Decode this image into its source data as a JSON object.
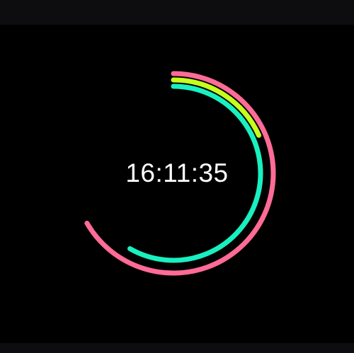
{
  "clock": {
    "time": "16:11:35",
    "hours": 16,
    "minutes": 11,
    "seconds": 35
  },
  "rings": {
    "hours_ring": {
      "fraction": 0.6667,
      "color": "#ff6b96"
    },
    "minutes_ring": {
      "fraction": 0.1833,
      "color": "#c6ff1e"
    },
    "seconds_ring": {
      "fraction": 0.5833,
      "color": "#19f0c0"
    }
  },
  "colors": {
    "background": "#000000",
    "text": "#ffffff",
    "bars": "#0d0d0f"
  }
}
